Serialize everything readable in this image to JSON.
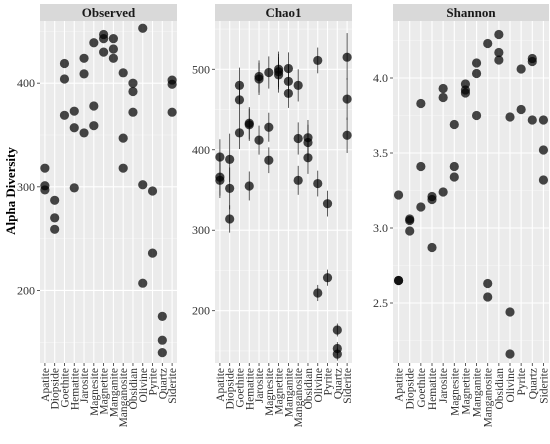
{
  "chart_data": {
    "type": "scatter",
    "ylabel": "Alpha Diversity",
    "categories": [
      "Apatite",
      "Diopside",
      "Goethite",
      "Hematite",
      "Jarosite",
      "Magnesite",
      "Magnetite",
      "Manganite",
      "Manganosite",
      "Obsidian",
      "Olivine",
      "Pyrite",
      "Quartz",
      "Siderite"
    ],
    "panels": [
      {
        "title": "Observed",
        "ylim": [
          130,
          460
        ],
        "yticks": [
          200,
          300,
          400
        ],
        "points": [
          {
            "x": "Apatite",
            "y": 318
          },
          {
            "x": "Apatite",
            "y": 301
          },
          {
            "x": "Apatite",
            "y": 297
          },
          {
            "x": "Diopside",
            "y": 287
          },
          {
            "x": "Diopside",
            "y": 270
          },
          {
            "x": "Diopside",
            "y": 259
          },
          {
            "x": "Goethite",
            "y": 419
          },
          {
            "x": "Goethite",
            "y": 404
          },
          {
            "x": "Goethite",
            "y": 369
          },
          {
            "x": "Hematite",
            "y": 373
          },
          {
            "x": "Hematite",
            "y": 357
          },
          {
            "x": "Hematite",
            "y": 299
          },
          {
            "x": "Jarosite",
            "y": 424
          },
          {
            "x": "Jarosite",
            "y": 409
          },
          {
            "x": "Jarosite",
            "y": 352
          },
          {
            "x": "Magnesite",
            "y": 439
          },
          {
            "x": "Magnesite",
            "y": 378
          },
          {
            "x": "Magnesite",
            "y": 359
          },
          {
            "x": "Magnetite",
            "y": 447
          },
          {
            "x": "Magnetite",
            "y": 443
          },
          {
            "x": "Magnetite",
            "y": 430
          },
          {
            "x": "Manganite",
            "y": 443
          },
          {
            "x": "Manganite",
            "y": 433
          },
          {
            "x": "Manganite",
            "y": 424
          },
          {
            "x": "Manganosite",
            "y": 410
          },
          {
            "x": "Manganosite",
            "y": 347
          },
          {
            "x": "Manganosite",
            "y": 318
          },
          {
            "x": "Obsidian",
            "y": 400
          },
          {
            "x": "Obsidian",
            "y": 392
          },
          {
            "x": "Obsidian",
            "y": 372
          },
          {
            "x": "Olivine",
            "y": 453
          },
          {
            "x": "Olivine",
            "y": 302
          },
          {
            "x": "Olivine",
            "y": 207
          },
          {
            "x": "Pyrite",
            "y": 296
          },
          {
            "x": "Pyrite",
            "y": 236
          },
          {
            "x": "Quartz",
            "y": 175
          },
          {
            "x": "Quartz",
            "y": 152
          },
          {
            "x": "Quartz",
            "y": 140
          },
          {
            "x": "Siderite",
            "y": 403
          },
          {
            "x": "Siderite",
            "y": 399
          },
          {
            "x": "Siderite",
            "y": 372
          }
        ]
      },
      {
        "title": "Chao1",
        "ylim": [
          135,
          560
        ],
        "yticks": [
          200,
          300,
          400,
          500
        ],
        "points": [
          {
            "x": "Apatite",
            "y": 391,
            "lo": 368,
            "hi": 413
          },
          {
            "x": "Apatite",
            "y": 366,
            "lo": 343,
            "hi": 389
          },
          {
            "x": "Apatite",
            "y": 362,
            "lo": 340,
            "hi": 384
          },
          {
            "x": "Diopside",
            "y": 388,
            "lo": 360,
            "hi": 420
          },
          {
            "x": "Diopside",
            "y": 352,
            "lo": 326,
            "hi": 378
          },
          {
            "x": "Diopside",
            "y": 314,
            "lo": 297,
            "hi": 331
          },
          {
            "x": "Goethite",
            "y": 480,
            "lo": 458,
            "hi": 502
          },
          {
            "x": "Goethite",
            "y": 462,
            "lo": 442,
            "hi": 482
          },
          {
            "x": "Goethite",
            "y": 421,
            "lo": 401,
            "hi": 442
          },
          {
            "x": "Hematite",
            "y": 433,
            "lo": 413,
            "hi": 453
          },
          {
            "x": "Hematite",
            "y": 431,
            "lo": 411,
            "hi": 451
          },
          {
            "x": "Hematite",
            "y": 355,
            "lo": 337,
            "hi": 373
          },
          {
            "x": "Jarosite",
            "y": 491,
            "lo": 471,
            "hi": 511
          },
          {
            "x": "Jarosite",
            "y": 488,
            "lo": 468,
            "hi": 508
          },
          {
            "x": "Jarosite",
            "y": 412,
            "lo": 394,
            "hi": 430
          },
          {
            "x": "Magnesite",
            "y": 496,
            "lo": 476,
            "hi": 516
          },
          {
            "x": "Magnesite",
            "y": 428,
            "lo": 410,
            "hi": 446
          },
          {
            "x": "Magnesite",
            "y": 387,
            "lo": 371,
            "hi": 403
          },
          {
            "x": "Magnetite",
            "y": 500,
            "lo": 478,
            "hi": 522
          },
          {
            "x": "Magnetite",
            "y": 497,
            "lo": 475,
            "hi": 519
          },
          {
            "x": "Magnetite",
            "y": 493,
            "lo": 471,
            "hi": 515
          },
          {
            "x": "Manganite",
            "y": 501,
            "lo": 481,
            "hi": 521
          },
          {
            "x": "Manganite",
            "y": 485,
            "lo": 465,
            "hi": 505
          },
          {
            "x": "Manganite",
            "y": 470,
            "lo": 452,
            "hi": 488
          },
          {
            "x": "Manganosite",
            "y": 480,
            "lo": 460,
            "hi": 500
          },
          {
            "x": "Manganosite",
            "y": 414,
            "lo": 394,
            "hi": 434
          },
          {
            "x": "Manganosite",
            "y": 362,
            "lo": 344,
            "hi": 380
          },
          {
            "x": "Obsidian",
            "y": 415,
            "lo": 393,
            "hi": 437
          },
          {
            "x": "Obsidian",
            "y": 409,
            "lo": 387,
            "hi": 431
          },
          {
            "x": "Obsidian",
            "y": 390,
            "lo": 370,
            "hi": 410
          },
          {
            "x": "Olivine",
            "y": 511,
            "lo": 495,
            "hi": 527
          },
          {
            "x": "Olivine",
            "y": 358,
            "lo": 342,
            "hi": 374
          },
          {
            "x": "Olivine",
            "y": 222,
            "lo": 212,
            "hi": 232
          },
          {
            "x": "Pyrite",
            "y": 333,
            "lo": 317,
            "hi": 349
          },
          {
            "x": "Pyrite",
            "y": 241,
            "lo": 231,
            "hi": 251
          },
          {
            "x": "Quartz",
            "y": 176,
            "lo": 168,
            "hi": 184
          },
          {
            "x": "Quartz",
            "y": 153,
            "lo": 145,
            "hi": 161
          },
          {
            "x": "Quartz",
            "y": 146,
            "lo": 138,
            "hi": 154
          },
          {
            "x": "Siderite",
            "y": 515,
            "lo": 487,
            "hi": 545
          },
          {
            "x": "Siderite",
            "y": 463,
            "lo": 437,
            "hi": 489
          },
          {
            "x": "Siderite",
            "y": 418,
            "lo": 396,
            "hi": 440
          }
        ]
      },
      {
        "title": "Shannon",
        "ylim": [
          2.1,
          4.38
        ],
        "yticks": [
          2.5,
          3.0,
          3.5,
          4.0
        ],
        "points": [
          {
            "x": "Apatite",
            "y": 3.22
          },
          {
            "x": "Apatite",
            "y": 2.65
          },
          {
            "x": "Apatite",
            "y": 2.65
          },
          {
            "x": "Diopside",
            "y": 3.06
          },
          {
            "x": "Diopside",
            "y": 3.05
          },
          {
            "x": "Diopside",
            "y": 2.98
          },
          {
            "x": "Goethite",
            "y": 3.83
          },
          {
            "x": "Goethite",
            "y": 3.41
          },
          {
            "x": "Goethite",
            "y": 3.14
          },
          {
            "x": "Hematite",
            "y": 3.21
          },
          {
            "x": "Hematite",
            "y": 3.19
          },
          {
            "x": "Hematite",
            "y": 2.87
          },
          {
            "x": "Jarosite",
            "y": 3.93
          },
          {
            "x": "Jarosite",
            "y": 3.87
          },
          {
            "x": "Jarosite",
            "y": 3.24
          },
          {
            "x": "Magnesite",
            "y": 3.69
          },
          {
            "x": "Magnesite",
            "y": 3.41
          },
          {
            "x": "Magnesite",
            "y": 3.34
          },
          {
            "x": "Magnetite",
            "y": 3.96
          },
          {
            "x": "Magnetite",
            "y": 3.92
          },
          {
            "x": "Magnetite",
            "y": 3.9
          },
          {
            "x": "Manganite",
            "y": 4.1
          },
          {
            "x": "Manganite",
            "y": 4.03
          },
          {
            "x": "Manganite",
            "y": 3.75
          },
          {
            "x": "Manganosite",
            "y": 4.23
          },
          {
            "x": "Manganosite",
            "y": 2.63
          },
          {
            "x": "Manganosite",
            "y": 2.54
          },
          {
            "x": "Obsidian",
            "y": 4.29
          },
          {
            "x": "Obsidian",
            "y": 4.17
          },
          {
            "x": "Obsidian",
            "y": 4.12
          },
          {
            "x": "Olivine",
            "y": 3.74
          },
          {
            "x": "Olivine",
            "y": 2.44
          },
          {
            "x": "Olivine",
            "y": 2.16
          },
          {
            "x": "Pyrite",
            "y": 4.06
          },
          {
            "x": "Pyrite",
            "y": 3.79
          },
          {
            "x": "Quartz",
            "y": 4.13
          },
          {
            "x": "Quartz",
            "y": 4.11
          },
          {
            "x": "Quartz",
            "y": 3.72
          },
          {
            "x": "Siderite",
            "y": 3.72
          },
          {
            "x": "Siderite",
            "y": 3.52
          },
          {
            "x": "Siderite",
            "y": 3.32
          }
        ]
      }
    ],
    "grid": true,
    "legend": "none"
  }
}
